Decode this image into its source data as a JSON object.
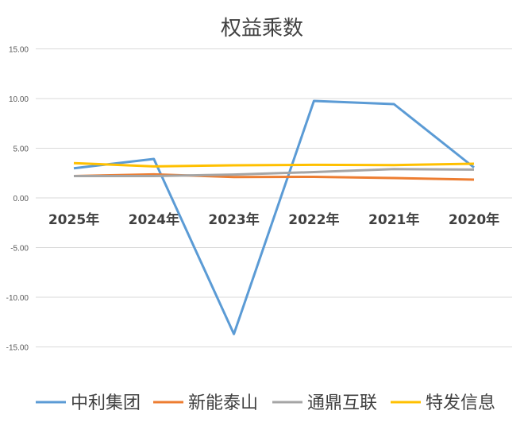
{
  "chart_data": {
    "type": "line",
    "title": "权益乘数",
    "categories": [
      "2025年",
      "2024年",
      "2023年",
      "2022年",
      "2021年",
      "2020年"
    ],
    "ylim": [
      -15,
      15
    ],
    "yticks": [
      "15.00",
      "10.00",
      "5.00",
      "0.00",
      "-5.00",
      "-10.00",
      "-15.00"
    ],
    "ytick_values": [
      15,
      10,
      5,
      0,
      -5,
      -10,
      -15
    ],
    "grid": true,
    "legend_position": "bottom",
    "series": [
      {
        "name": "中利集团",
        "color": "#5B9BD5",
        "values": [
          2.98,
          3.92,
          -13.7,
          9.76,
          9.44,
          3.06
        ]
      },
      {
        "name": "新能泰山",
        "color": "#ED7D31",
        "values": [
          2.2,
          2.37,
          2.1,
          2.12,
          2.0,
          1.84
        ]
      },
      {
        "name": "通鼎互联",
        "color": "#A5A5A5",
        "values": [
          2.2,
          2.2,
          2.35,
          2.6,
          2.9,
          2.85
        ]
      },
      {
        "name": "特发信息",
        "color": "#FFC000",
        "values": [
          3.5,
          3.17,
          3.28,
          3.33,
          3.3,
          3.44
        ]
      }
    ]
  }
}
